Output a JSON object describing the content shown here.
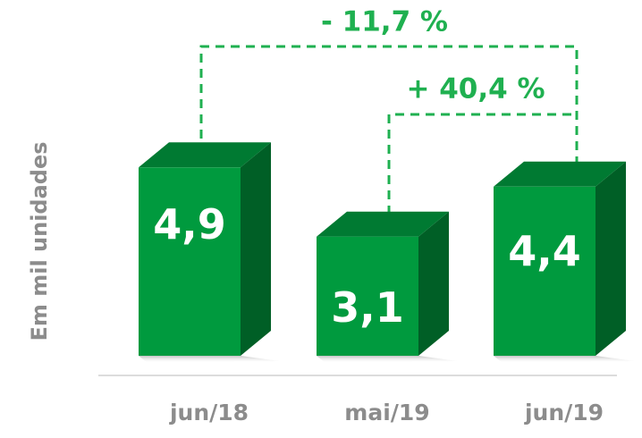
{
  "chart_data": {
    "type": "bar",
    "y_label": "Em mil unidades",
    "categories": [
      "jun/18",
      "mai/19",
      "jun/19"
    ],
    "values": [
      4.9,
      3.1,
      4.4
    ],
    "value_labels": [
      "4,9",
      "3,1",
      "4,4"
    ],
    "color": "#009a3e",
    "annotations": [
      "- 11,7 %",
      "+ 40,4 %"
    ]
  }
}
